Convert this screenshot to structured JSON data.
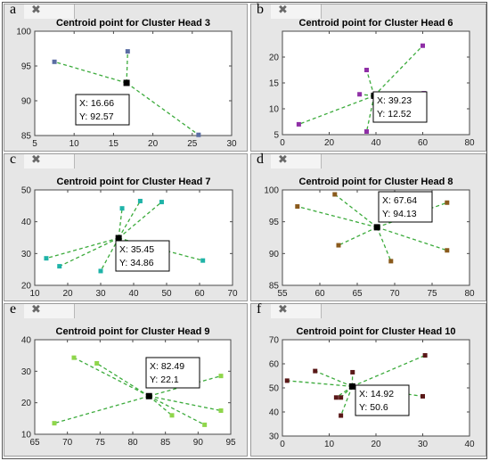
{
  "chart_data": [
    {
      "type": "scatter",
      "panel_letter": "a",
      "title": "Centroid point for Cluster Head 3",
      "xlim": [
        5,
        30
      ],
      "ylim": [
        85,
        100
      ],
      "xticks": [
        5,
        10,
        15,
        20,
        25,
        30
      ],
      "yticks": [
        85,
        90,
        95,
        100
      ],
      "marker_color": "#5b6ea3",
      "centroid": {
        "x": 16.66,
        "y": 92.57
      },
      "datatip": {
        "x_text": "X: 16.66",
        "y_text": "Y: 92.57"
      },
      "points": [
        {
          "x": 7.5,
          "y": 95.6
        },
        {
          "x": 16.8,
          "y": 97.1
        },
        {
          "x": 25.8,
          "y": 85.1
        }
      ]
    },
    {
      "type": "scatter",
      "panel_letter": "b",
      "title": "Centroid point for Cluster Head 6",
      "xlim": [
        0,
        80
      ],
      "ylim": [
        5,
        25
      ],
      "xticks": [
        0,
        20,
        40,
        60,
        80
      ],
      "yticks": [
        5,
        10,
        15,
        20
      ],
      "marker_color": "#8f2fa6",
      "centroid": {
        "x": 39.23,
        "y": 12.52
      },
      "datatip": {
        "x_text": "X: 39.23",
        "y_text": "Y: 12.52"
      },
      "points": [
        {
          "x": 7,
          "y": 7
        },
        {
          "x": 33,
          "y": 12.8
        },
        {
          "x": 36,
          "y": 17.5
        },
        {
          "x": 36,
          "y": 5.6
        },
        {
          "x": 40,
          "y": 10
        },
        {
          "x": 60,
          "y": 22.2
        },
        {
          "x": 60.5,
          "y": 13
        }
      ]
    },
    {
      "type": "scatter",
      "panel_letter": "c",
      "title": "Centroid point for Cluster Head 7",
      "xlim": [
        10,
        70
      ],
      "ylim": [
        20,
        50
      ],
      "xticks": [
        10,
        20,
        30,
        40,
        50,
        60,
        70
      ],
      "yticks": [
        20,
        30,
        40,
        50
      ],
      "marker_color": "#1fb3a8",
      "centroid": {
        "x": 35.45,
        "y": 34.86
      },
      "datatip": {
        "x_text": "X: 35.45",
        "y_text": "Y: 34.86"
      },
      "points": [
        {
          "x": 13.5,
          "y": 28.5
        },
        {
          "x": 17.5,
          "y": 26
        },
        {
          "x": 30,
          "y": 24.5
        },
        {
          "x": 36.5,
          "y": 44.2
        },
        {
          "x": 42,
          "y": 46.5
        },
        {
          "x": 48.5,
          "y": 46.2
        },
        {
          "x": 61,
          "y": 27.8
        }
      ]
    },
    {
      "type": "scatter",
      "panel_letter": "d",
      "title": "Centroid point for Cluster Head 8",
      "xlim": [
        55,
        80
      ],
      "ylim": [
        85,
        100
      ],
      "xticks": [
        55,
        60,
        65,
        70,
        75,
        80
      ],
      "yticks": [
        85,
        90,
        95,
        100
      ],
      "marker_color": "#8a5a1c",
      "centroid": {
        "x": 67.64,
        "y": 94.13
      },
      "datatip": {
        "x_text": "X: 67.64",
        "y_text": "Y: 94.13"
      },
      "points": [
        {
          "x": 57,
          "y": 97.4
        },
        {
          "x": 62,
          "y": 99.3
        },
        {
          "x": 62.5,
          "y": 91.3
        },
        {
          "x": 69.5,
          "y": 88.8
        },
        {
          "x": 77,
          "y": 98
        },
        {
          "x": 77,
          "y": 90.5
        }
      ]
    },
    {
      "type": "scatter",
      "panel_letter": "e",
      "title": "Centroid point for Cluster Head 9",
      "xlim": [
        65,
        95
      ],
      "ylim": [
        10,
        40
      ],
      "xticks": [
        65,
        70,
        75,
        80,
        85,
        90,
        95
      ],
      "yticks": [
        10,
        20,
        30,
        40
      ],
      "marker_color": "#8fd64b",
      "centroid": {
        "x": 82.49,
        "y": 22.1
      },
      "datatip": {
        "x_text": "X: 82.49",
        "y_text": "Y: 22.1"
      },
      "points": [
        {
          "x": 68,
          "y": 13.5
        },
        {
          "x": 71,
          "y": 34.3
        },
        {
          "x": 74.5,
          "y": 32.5
        },
        {
          "x": 86,
          "y": 16
        },
        {
          "x": 91,
          "y": 13
        },
        {
          "x": 93.5,
          "y": 28.5
        },
        {
          "x": 93.5,
          "y": 17.5
        }
      ]
    },
    {
      "type": "scatter",
      "panel_letter": "f",
      "title": "Centroid point for Cluster Head 10",
      "xlim": [
        0,
        40
      ],
      "ylim": [
        30,
        70
      ],
      "xticks": [
        0,
        10,
        20,
        30,
        40
      ],
      "yticks": [
        30,
        40,
        50,
        60,
        70
      ],
      "marker_color": "#5a1818",
      "centroid": {
        "x": 14.92,
        "y": 50.6
      },
      "datatip": {
        "x_text": "X: 14.92",
        "y_text": "Y: 50.6"
      },
      "points": [
        {
          "x": 1,
          "y": 53
        },
        {
          "x": 7,
          "y": 57
        },
        {
          "x": 11.5,
          "y": 46
        },
        {
          "x": 12.5,
          "y": 46
        },
        {
          "x": 12.5,
          "y": 38.5
        },
        {
          "x": 15,
          "y": 56.5
        },
        {
          "x": 30.5,
          "y": 63.5
        },
        {
          "x": 30,
          "y": 46.5
        }
      ]
    }
  ]
}
